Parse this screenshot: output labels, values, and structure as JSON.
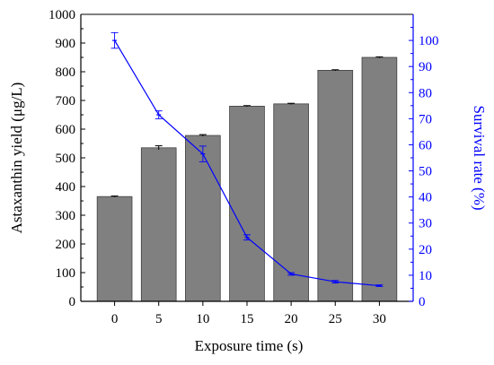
{
  "chart_data": {
    "type": "bar",
    "title": "",
    "xlabel": "Exposure time (s)",
    "ylabel": "Astaxanthin yield (μg/L)",
    "y2label": "Survival rate (%)",
    "categories": [
      "0",
      "5",
      "10",
      "15",
      "20",
      "25",
      "30"
    ],
    "ylim": [
      0,
      1000
    ],
    "y2lim": [
      0,
      110
    ],
    "yticks": [
      "0",
      "100",
      "200",
      "300",
      "400",
      "500",
      "600",
      "700",
      "800",
      "900",
      "1000"
    ],
    "y2ticks": [
      "0",
      "10",
      "20",
      "30",
      "40",
      "50",
      "60",
      "70",
      "80",
      "90",
      "100"
    ],
    "grid": false,
    "series": [
      {
        "type": "bar",
        "axis": "left",
        "color": "#808080",
        "values": [
          365,
          535,
          578,
          680,
          688,
          805,
          850
        ],
        "errors": [
          2,
          7,
          3,
          2,
          2,
          2,
          2
        ]
      },
      {
        "type": "line",
        "axis": "right",
        "color": "#0000ff",
        "values": [
          100,
          71.5,
          56.5,
          24.5,
          10.5,
          7.5,
          6
        ],
        "errors": [
          3,
          1.5,
          3,
          1,
          0.5,
          0.5,
          0.3
        ]
      }
    ]
  },
  "colors": {
    "left_axis": "#000000",
    "right_axis": "#0000ff",
    "bar_fill": "#808080",
    "line": "#0000ff"
  }
}
